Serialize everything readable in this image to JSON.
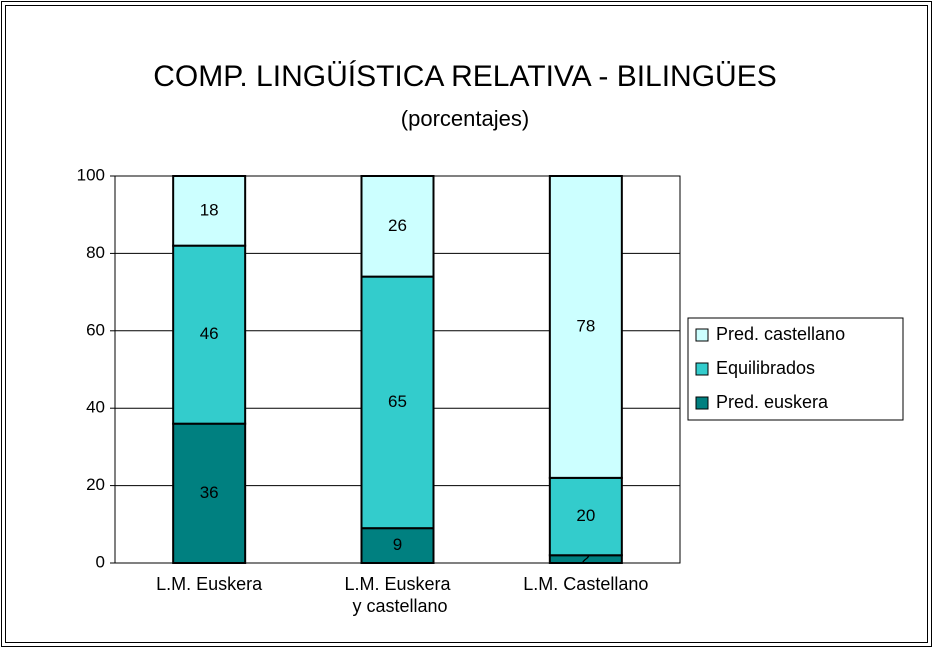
{
  "chart_data": {
    "type": "stacked_bar",
    "title": "COMP. LINGÜÍSTICA RELATIVA - BILINGÜES",
    "subtitle": "(porcentajes)",
    "categories": [
      "L.M. Euskera",
      "L.M. Euskera y castellano",
      "L.M. Castellano"
    ],
    "series": [
      {
        "name": "Pred. euskera",
        "color": "#008080",
        "values": [
          36,
          9,
          2
        ]
      },
      {
        "name": "Equilibrados",
        "color": "#33cccc",
        "values": [
          46,
          65,
          20
        ]
      },
      {
        "name": "Pred. castellano",
        "color": "#ccffff",
        "values": [
          18,
          26,
          78
        ]
      }
    ],
    "ylim": [
      0,
      100
    ],
    "yticks": [
      0,
      20,
      40,
      60,
      80,
      100
    ],
    "grid": true,
    "legend": "right"
  }
}
